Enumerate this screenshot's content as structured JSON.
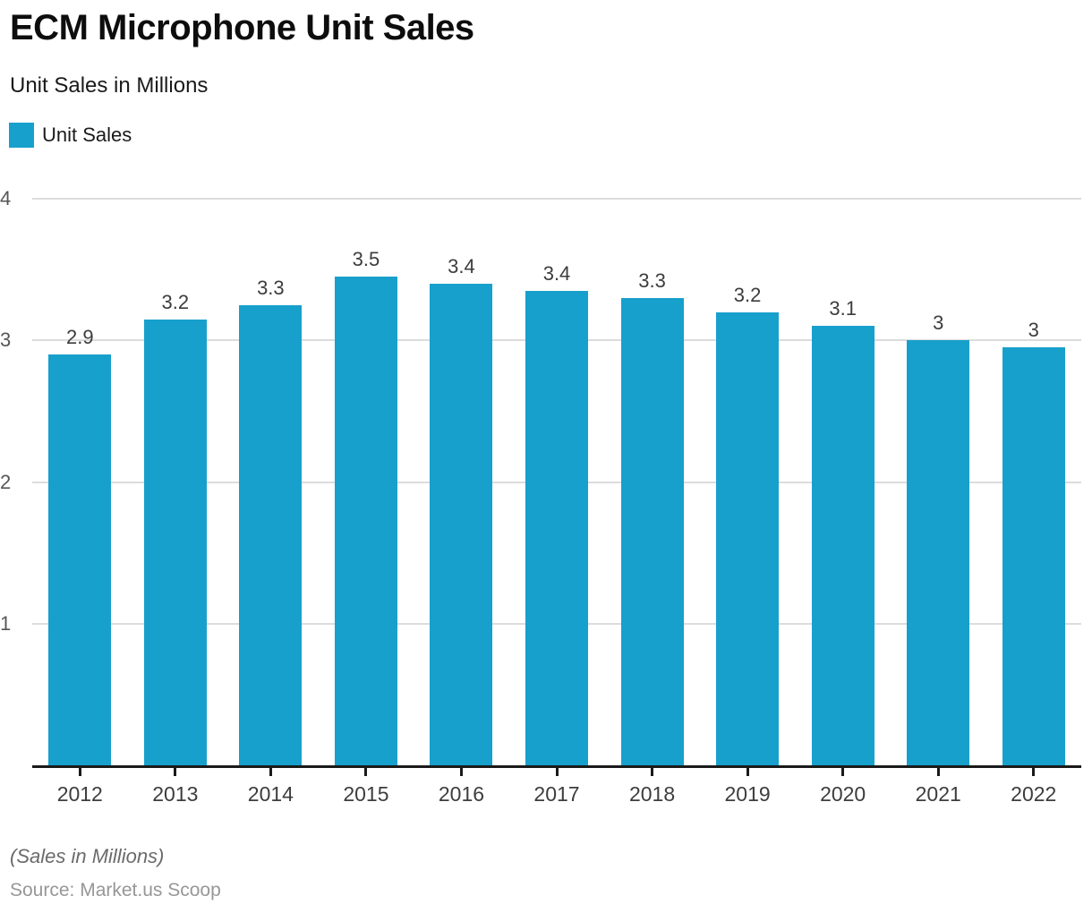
{
  "header": {
    "title": "ECM Microphone Unit Sales",
    "subtitle": "Unit Sales in Millions"
  },
  "legend": {
    "label": "Unit Sales"
  },
  "footer": {
    "note": "(Sales in Millions)",
    "source": "Source: Market.us Scoop"
  },
  "colors": {
    "bar": "#18a0cc",
    "grid": "#dcdcdc",
    "axis": "#1a1a1a",
    "value_label": "#3c3c3c",
    "y_tick_label": "#565656",
    "x_tick_label": "#3d3d3d"
  },
  "chart_data": {
    "type": "bar",
    "title": "ECM Microphone Unit Sales",
    "subtitle": "Unit Sales in Millions",
    "series_name": "Unit Sales",
    "categories": [
      "2012",
      "2013",
      "2014",
      "2015",
      "2016",
      "2017",
      "2018",
      "2019",
      "2020",
      "2021",
      "2022"
    ],
    "values": [
      2.9,
      3.15,
      3.25,
      3.45,
      3.4,
      3.35,
      3.3,
      3.2,
      3.1,
      3.0,
      2.95
    ],
    "value_labels": [
      "2.9",
      "3.2",
      "3.3",
      "3.5",
      "3.4",
      "3.4",
      "3.3",
      "3.2",
      "3.1",
      "3",
      "3"
    ],
    "xlabel": "",
    "ylabel": "",
    "ylim": [
      0,
      4
    ],
    "yticks": [
      1,
      2,
      3,
      4
    ],
    "grid": true,
    "legend_position": "top-left"
  }
}
